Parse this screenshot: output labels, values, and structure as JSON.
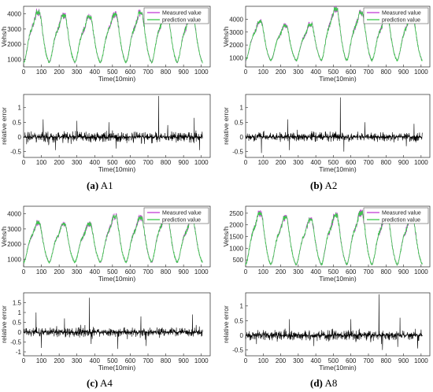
{
  "chart_data": [
    {
      "type": "line",
      "panel": "A1",
      "caption": {
        "letter": "(a)",
        "name": "A1"
      },
      "traffic": {
        "xlabel": "Time(10min)",
        "ylabel": "Vehs/h",
        "xlim": [
          0,
          1050
        ],
        "ylim": [
          500,
          4500
        ],
        "xticks": [
          0,
          100,
          200,
          300,
          400,
          500,
          600,
          700,
          800,
          900,
          1000
        ],
        "yticks": [
          1000,
          2000,
          3000,
          4000
        ],
        "legend_position": "top-right",
        "series": [
          {
            "name": "Measured value",
            "color": "#c43dd6"
          },
          {
            "name": "prediction value",
            "color": "#3bc94a"
          }
        ],
        "day_peaks": [
          4100,
          3900,
          3800,
          3950,
          4050,
          4150,
          4000
        ],
        "trough_value": 800,
        "period": 144
      },
      "error": {
        "xlabel": "Time(10min)",
        "ylabel": "relative error",
        "xlim": [
          0,
          1050
        ],
        "ylim": [
          -0.7,
          1.45
        ],
        "xticks": [
          0,
          100,
          200,
          300,
          400,
          500,
          600,
          700,
          800,
          900,
          1000
        ],
        "yticks": [
          -0.5,
          0,
          0.5,
          1
        ],
        "typical_amplitude": 0.25,
        "spikes": [
          [
            110,
            0.6
          ],
          [
            180,
            -0.45
          ],
          [
            300,
            0.55
          ],
          [
            480,
            0.5
          ],
          [
            520,
            -0.4
          ],
          [
            760,
            1.4
          ],
          [
            960,
            0.65
          ],
          [
            990,
            -0.45
          ]
        ]
      }
    },
    {
      "type": "line",
      "panel": "A2",
      "caption": {
        "letter": "(b)",
        "name": "A2"
      },
      "traffic": {
        "xlabel": "Time(10min)",
        "ylabel": "Vehs/h",
        "xlim": [
          0,
          1050
        ],
        "ylim": [
          300,
          5000
        ],
        "xticks": [
          0,
          100,
          200,
          300,
          400,
          500,
          600,
          700,
          800,
          900,
          1000
        ],
        "yticks": [
          1000,
          2000,
          3000,
          4000
        ],
        "legend_position": "top-right",
        "series": [
          {
            "name": "Measured value",
            "color": "#c43dd6"
          },
          {
            "name": "prediction value",
            "color": "#3bc94a"
          }
        ],
        "day_peaks": [
          3800,
          3500,
          3600,
          4800,
          4500,
          4200,
          4300
        ],
        "trough_value": 800,
        "period": 144
      },
      "error": {
        "xlabel": "Time(10min)",
        "ylabel": "relative error",
        "xlim": [
          0,
          1050
        ],
        "ylim": [
          -0.7,
          1.45
        ],
        "xticks": [
          0,
          100,
          200,
          300,
          400,
          500,
          600,
          700,
          800,
          900,
          1000
        ],
        "yticks": [
          -0.5,
          0,
          0.5,
          1
        ],
        "typical_amplitude": 0.2,
        "spikes": [
          [
            90,
            -0.55
          ],
          [
            240,
            0.6
          ],
          [
            250,
            -0.45
          ],
          [
            540,
            1.35
          ],
          [
            560,
            -0.5
          ],
          [
            680,
            0.5
          ],
          [
            960,
            0.45
          ]
        ]
      }
    },
    {
      "type": "line",
      "panel": "A4",
      "caption": {
        "letter": "(c)",
        "name": "A4"
      },
      "traffic": {
        "xlabel": "Time(10min)",
        "ylabel": "Vehs/h",
        "xlim": [
          0,
          1050
        ],
        "ylim": [
          500,
          4500
        ],
        "xticks": [
          0,
          100,
          200,
          300,
          400,
          500,
          600,
          700,
          800,
          900,
          1000
        ],
        "yticks": [
          1000,
          2000,
          3000,
          4000
        ],
        "legend_position": "top-right",
        "series": [
          {
            "name": "Measured value",
            "color": "#c43dd6"
          },
          {
            "name": "prediction value",
            "color": "#3bc94a"
          }
        ],
        "day_peaks": [
          3400,
          3300,
          3300,
          3800,
          3700,
          4000,
          3600
        ],
        "trough_value": 800,
        "period": 144
      },
      "error": {
        "xlabel": "Time(10min)",
        "ylabel": "relative error",
        "xlim": [
          0,
          1050
        ],
        "ylim": [
          -1.2,
          2.0
        ],
        "xticks": [
          0,
          100,
          200,
          300,
          400,
          500,
          600,
          700,
          800,
          900,
          1000
        ],
        "yticks": [
          -1,
          -0.5,
          0,
          0.5,
          1,
          1.5
        ],
        "typical_amplitude": 0.3,
        "spikes": [
          [
            70,
            1.0
          ],
          [
            100,
            -0.8
          ],
          [
            230,
            0.7
          ],
          [
            370,
            1.75
          ],
          [
            380,
            -0.6
          ],
          [
            530,
            -0.85
          ],
          [
            660,
            0.8
          ],
          [
            690,
            -0.7
          ],
          [
            950,
            0.9
          ]
        ]
      }
    },
    {
      "type": "line",
      "panel": "A8",
      "caption": {
        "letter": "(d)",
        "name": "A8"
      },
      "traffic": {
        "xlabel": "Time(10min)",
        "ylabel": "Vehs/h",
        "xlim": [
          0,
          1050
        ],
        "ylim": [
          200,
          2800
        ],
        "xticks": [
          0,
          100,
          200,
          300,
          400,
          500,
          600,
          700,
          800,
          900,
          1000
        ],
        "yticks": [
          500,
          1000,
          1500,
          2000,
          2500
        ],
        "legend_position": "top-right",
        "series": [
          {
            "name": "Measured value",
            "color": "#c43dd6"
          },
          {
            "name": "prediction value",
            "color": "#3bc94a"
          }
        ],
        "day_peaks": [
          2500,
          2300,
          2200,
          2400,
          2500,
          2450,
          2350
        ],
        "trough_value": 300,
        "period": 144
      },
      "error": {
        "xlabel": "Time(10min)",
        "ylabel": "relative error",
        "xlim": [
          0,
          1050
        ],
        "ylim": [
          -0.7,
          1.45
        ],
        "xticks": [
          0,
          100,
          200,
          300,
          400,
          500,
          600,
          700,
          800,
          900,
          1000
        ],
        "yticks": [
          -0.5,
          0,
          0.5,
          1
        ],
        "typical_amplitude": 0.25,
        "spikes": [
          [
            250,
            0.55
          ],
          [
            600,
            0.55
          ],
          [
            760,
            1.4
          ],
          [
            780,
            -0.5
          ],
          [
            880,
            0.6
          ],
          [
            980,
            -0.45
          ]
        ]
      }
    }
  ]
}
